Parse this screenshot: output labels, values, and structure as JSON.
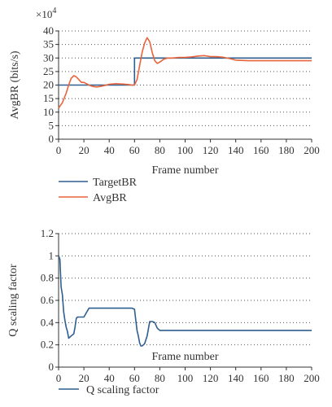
{
  "chart_data": [
    {
      "type": "line",
      "multiplier_label": "×10",
      "multiplier_exp": "4",
      "xlabel": "Frame number",
      "ylabel": "AvgBR (bits/s)",
      "xlim": [
        0,
        200
      ],
      "ylim": [
        0,
        40
      ],
      "xticks": [
        0,
        20,
        40,
        60,
        80,
        100,
        120,
        140,
        160,
        180,
        200
      ],
      "yticks": [
        0,
        5,
        10,
        15,
        20,
        25,
        30,
        35,
        40
      ],
      "grid": "horizontal-dotted",
      "legend_position": "bottom-left",
      "series": [
        {
          "name": "TargetBR",
          "color": "#2e5f8f",
          "x": [
            0,
            60,
            60,
            200
          ],
          "y": [
            20,
            20,
            30,
            30
          ]
        },
        {
          "name": "AvgBR",
          "color": "#e8643c",
          "x": [
            0,
            3,
            6,
            8,
            10,
            12,
            14,
            16,
            18,
            20,
            22,
            24,
            27,
            30,
            33,
            36,
            40,
            45,
            50,
            55,
            58,
            60,
            62,
            64,
            66,
            68,
            70,
            72,
            74,
            76,
            78,
            80,
            83,
            86,
            90,
            95,
            100,
            105,
            110,
            115,
            120,
            125,
            130,
            135,
            140,
            150,
            160,
            170,
            180,
            190,
            200
          ],
          "y": [
            11.5,
            13.5,
            17,
            20,
            22.5,
            23.5,
            23,
            22,
            21,
            21,
            20.5,
            20,
            19.5,
            19.3,
            19.5,
            19.8,
            20.3,
            20.5,
            20.4,
            20.2,
            20,
            20,
            22,
            27,
            32,
            35.5,
            37.5,
            36,
            32,
            29,
            28,
            28.5,
            29.5,
            30,
            30,
            30.2,
            30.2,
            30.4,
            30.7,
            30.9,
            30.5,
            30.5,
            30.3,
            29.8,
            29.2,
            29,
            29,
            29,
            29,
            29,
            29
          ]
        }
      ]
    },
    {
      "type": "line",
      "xlabel": "Frame number",
      "ylabel": "Q scaling factor",
      "xlim": [
        0,
        200
      ],
      "ylim": [
        0,
        1.2
      ],
      "xticks": [
        0,
        20,
        40,
        60,
        80,
        100,
        120,
        140,
        160,
        180,
        200
      ],
      "yticks": [
        0,
        0.2,
        0.4,
        0.6,
        0.8,
        1,
        1.2
      ],
      "grid": "horizontal-dotted",
      "legend_position": "bottom-left",
      "series": [
        {
          "name": "Q scaling factor",
          "color": "#2e5f8f",
          "x": [
            0,
            1,
            2,
            3,
            4,
            5,
            6,
            7,
            8,
            10,
            12,
            13,
            14,
            15,
            20,
            22,
            23,
            24,
            25,
            40,
            58,
            60,
            61,
            62,
            63,
            64,
            65,
            66,
            68,
            70,
            72,
            74,
            76,
            78,
            80,
            90,
            200
          ],
          "y": [
            1,
            0.97,
            0.72,
            0.65,
            0.5,
            0.42,
            0.36,
            0.32,
            0.26,
            0.28,
            0.3,
            0.36,
            0.44,
            0.45,
            0.45,
            0.49,
            0.51,
            0.53,
            0.53,
            0.53,
            0.53,
            0.52,
            0.42,
            0.33,
            0.28,
            0.22,
            0.19,
            0.19,
            0.21,
            0.28,
            0.41,
            0.41,
            0.4,
            0.35,
            0.33,
            0.33,
            0.33
          ]
        }
      ]
    }
  ]
}
